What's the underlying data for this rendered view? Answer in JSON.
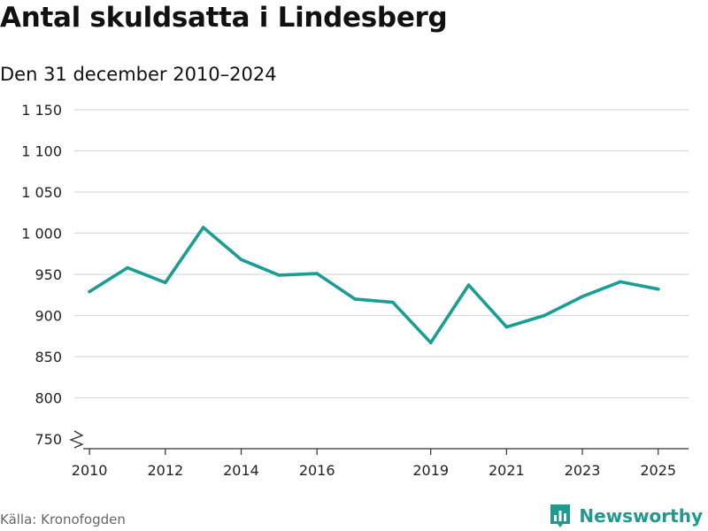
{
  "header": {
    "title": "Antal skuldsatta i Lindesberg",
    "subtitle": "Den 31 december 2010–2024"
  },
  "footer": {
    "source": "Källa: Kronofogden",
    "brand": "Newsworthy",
    "brand_icon": "newsworthy-logo-icon"
  },
  "colors": {
    "line": "#1a9e94",
    "grid": "#d9d9d9",
    "axis": "#333333",
    "brand": "#1f9a8f"
  },
  "chart_data": {
    "type": "line",
    "title": "Antal skuldsatta i Lindesberg",
    "subtitle": "Den 31 december 2010–2024",
    "xlabel": "",
    "ylabel": "",
    "x_tick_labels": [
      "2010",
      "2012",
      "2014",
      "2016",
      "2019",
      "2021",
      "2023",
      "2025"
    ],
    "y_tick_labels": [
      "750",
      "800",
      "850",
      "900",
      "950",
      "1 000",
      "1 050",
      "1 100",
      "1 150"
    ],
    "y_ticks": [
      750,
      800,
      850,
      900,
      950,
      1000,
      1050,
      1100,
      1150
    ],
    "ylim": [
      750,
      1150
    ],
    "axis_break": true,
    "grid": true,
    "series": [
      {
        "name": "Antal skuldsatta",
        "x": [
          2010,
          2011,
          2012,
          2013,
          2014,
          2015,
          2016,
          2017,
          2018,
          2019,
          2020,
          2021,
          2022,
          2023,
          2024,
          2025
        ],
        "values": [
          929,
          958,
          940,
          1007,
          968,
          949,
          951,
          920,
          916,
          867,
          937,
          886,
          900,
          923,
          941,
          932
        ]
      }
    ]
  }
}
